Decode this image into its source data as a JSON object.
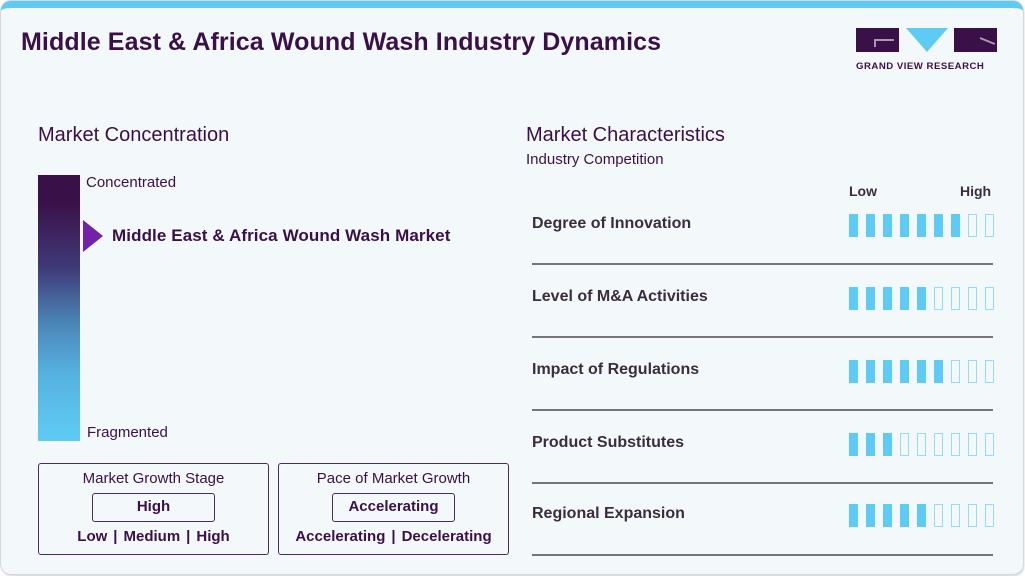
{
  "header": {
    "title": "Middle East & Africa Wound Wash Industry Dynamics",
    "logo_text": "GRAND VIEW RESEARCH"
  },
  "colors": {
    "brand_purple": "#3a1048",
    "accent_blue": "#5ecbf5",
    "marker_purple": "#7122a8",
    "background": "#f3f8fb"
  },
  "market_concentration": {
    "title": "Market Concentration",
    "top_label": "Concentrated",
    "bottom_label": "Fragmented",
    "marker_label": "Middle East & Africa Wound Wash Market",
    "marker_icon": "triangle-right-icon"
  },
  "market_growth_stage": {
    "title": "Market Growth Stage",
    "value": "High",
    "options": [
      "Low",
      "Medium",
      "High"
    ],
    "separator": "|"
  },
  "pace_of_market_growth": {
    "title": "Pace of Market Growth",
    "value": "Accelerating",
    "options": [
      "Accelerating",
      "Decelerating"
    ],
    "separator": "|"
  },
  "market_characteristics": {
    "title": "Market Characteristics",
    "subtitle": "Industry Competition",
    "scale_low": "Low",
    "scale_high": "High",
    "max_segments": 9,
    "rows": [
      {
        "label": "Degree of Innovation",
        "filled": 7
      },
      {
        "label": "Level of M&A Activities",
        "filled": 5
      },
      {
        "label": "Impact of Regulations",
        "filled": 6
      },
      {
        "label": "Product Substitutes",
        "filled": 3
      },
      {
        "label": "Regional Expansion",
        "filled": 5
      }
    ]
  }
}
